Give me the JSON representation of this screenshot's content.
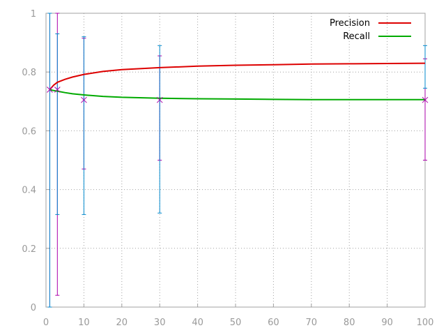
{
  "chart_data": {
    "type": "line",
    "title": "",
    "xlabel": "",
    "ylabel": "",
    "xlim": [
      0,
      100
    ],
    "ylim": [
      0,
      1
    ],
    "x_ticks": [
      "0",
      "10",
      "20",
      "30",
      "40",
      "50",
      "60",
      "70",
      "80",
      "90",
      "100"
    ],
    "y_ticks": [
      "0",
      "0.2",
      "0.4",
      "0.6",
      "0.8",
      "1"
    ],
    "grid": true,
    "legend_position": "top-right",
    "series": [
      {
        "name": "Precision",
        "color": "#dd0000",
        "x": [
          1,
          2,
          3,
          5,
          7,
          10,
          15,
          20,
          30,
          40,
          50,
          60,
          70,
          80,
          90,
          100
        ],
        "values": [
          0.74,
          0.755,
          0.765,
          0.775,
          0.783,
          0.792,
          0.802,
          0.808,
          0.815,
          0.82,
          0.823,
          0.825,
          0.827,
          0.828,
          0.829,
          0.83
        ]
      },
      {
        "name": "Recall",
        "color": "#00aa00",
        "x": [
          1,
          2,
          3,
          5,
          7,
          10,
          15,
          20,
          30,
          40,
          50,
          60,
          70,
          80,
          90,
          100
        ],
        "values": [
          0.74,
          0.737,
          0.735,
          0.73,
          0.726,
          0.722,
          0.717,
          0.714,
          0.711,
          0.709,
          0.708,
          0.707,
          0.706,
          0.706,
          0.706,
          0.706
        ]
      }
    ],
    "points": [
      {
        "x": 1,
        "y": 0.74
      },
      {
        "x": 3,
        "y": 0.74
      },
      {
        "x": 10,
        "y": 0.705
      },
      {
        "x": 30,
        "y": 0.705
      },
      {
        "x": 100,
        "y": 0.705
      }
    ],
    "error_bars": [
      {
        "color": "#aa00aa",
        "bars": [
          {
            "x": 1,
            "low": 0.0,
            "high": 1.0
          },
          {
            "x": 3,
            "low": 0.04,
            "high": 1.0
          },
          {
            "x": 10,
            "low": 0.47,
            "high": 0.915
          },
          {
            "x": 30,
            "low": 0.5,
            "high": 0.855
          },
          {
            "x": 100,
            "low": 0.5,
            "high": 0.845
          }
        ]
      },
      {
        "color": "#0088cc",
        "bars": [
          {
            "x": 1,
            "low": 0.0,
            "high": 1.0
          },
          {
            "x": 3,
            "low": 0.315,
            "high": 0.93
          },
          {
            "x": 10,
            "low": 0.315,
            "high": 0.92
          },
          {
            "x": 30,
            "low": 0.32,
            "high": 0.89
          },
          {
            "x": 100,
            "low": 0.745,
            "high": 0.89
          }
        ]
      }
    ]
  }
}
